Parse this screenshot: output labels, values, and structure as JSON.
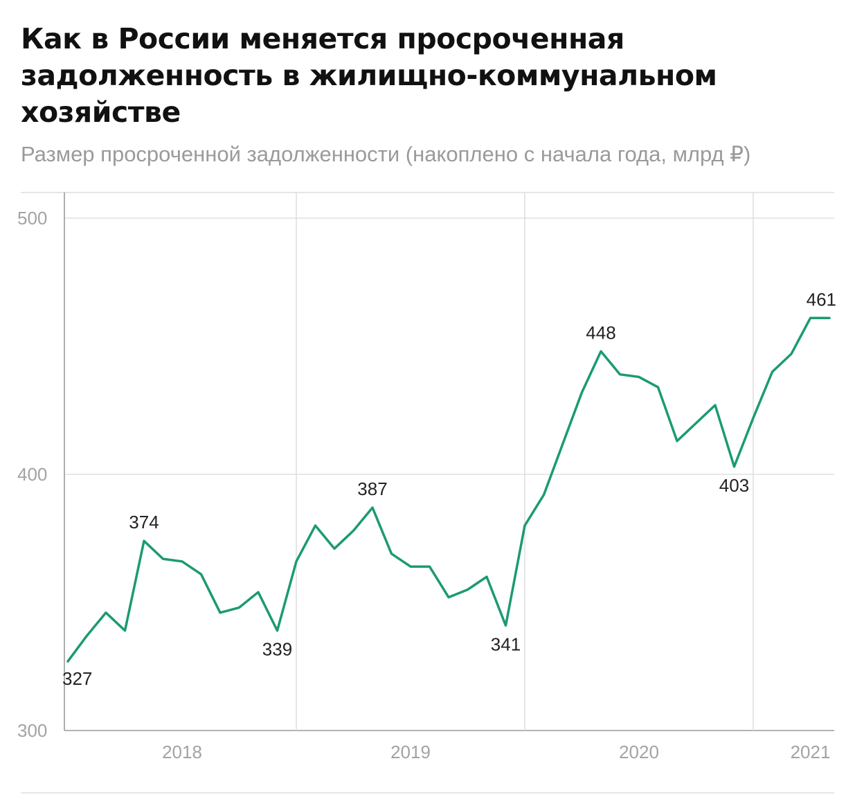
{
  "chart_data": {
    "type": "line",
    "title_lines": [
      "Как в России меняется просроченная",
      "задолженность в жилищно-коммунальном",
      "хозяйстве"
    ],
    "subtitle": "Размер просроченной задолженности (накоплено с начала года, млрд ₽)",
    "xlabel": "",
    "ylabel": "",
    "ylim": [
      300,
      510
    ],
    "yticks": [
      300,
      400,
      500
    ],
    "year_labels": [
      {
        "label": "2018",
        "x": 6
      },
      {
        "label": "2019",
        "x": 18
      },
      {
        "label": "2020",
        "x": 30
      },
      {
        "label": "2021",
        "x": 39
      }
    ],
    "year_dividers": [
      12,
      24,
      36
    ],
    "xlim": [
      0,
      42
    ],
    "series": [
      {
        "name": "Просроченная задолженность",
        "color": "#1b9a73",
        "x": [
          0,
          1,
          2,
          3,
          4,
          5,
          6,
          7,
          8,
          9,
          10,
          11,
          12,
          13,
          14,
          15,
          16,
          17,
          18,
          19,
          20,
          21,
          22,
          23,
          24,
          25,
          26,
          27,
          28,
          29,
          30,
          31,
          32,
          33,
          34,
          35,
          36,
          37,
          38,
          39,
          40
        ],
        "values": [
          327,
          337,
          346,
          339,
          374,
          367,
          366,
          361,
          346,
          348,
          354,
          339,
          366,
          380,
          371,
          378,
          387,
          369,
          364,
          364,
          352,
          355,
          360,
          341,
          380,
          392,
          412,
          432,
          448,
          439,
          438,
          434,
          413,
          420,
          427,
          403,
          422,
          440,
          447,
          461,
          461
        ]
      }
    ],
    "annotations": [
      {
        "label": "327",
        "index": 0,
        "pos": "below"
      },
      {
        "label": "374",
        "index": 4,
        "pos": "above"
      },
      {
        "label": "339",
        "index": 11,
        "pos": "below"
      },
      {
        "label": "387",
        "index": 16,
        "pos": "above"
      },
      {
        "label": "341",
        "index": 23,
        "pos": "below"
      },
      {
        "label": "448",
        "index": 28,
        "pos": "above"
      },
      {
        "label": "403",
        "index": 35,
        "pos": "below"
      },
      {
        "label": "461",
        "index": 40,
        "pos": "above"
      }
    ]
  }
}
